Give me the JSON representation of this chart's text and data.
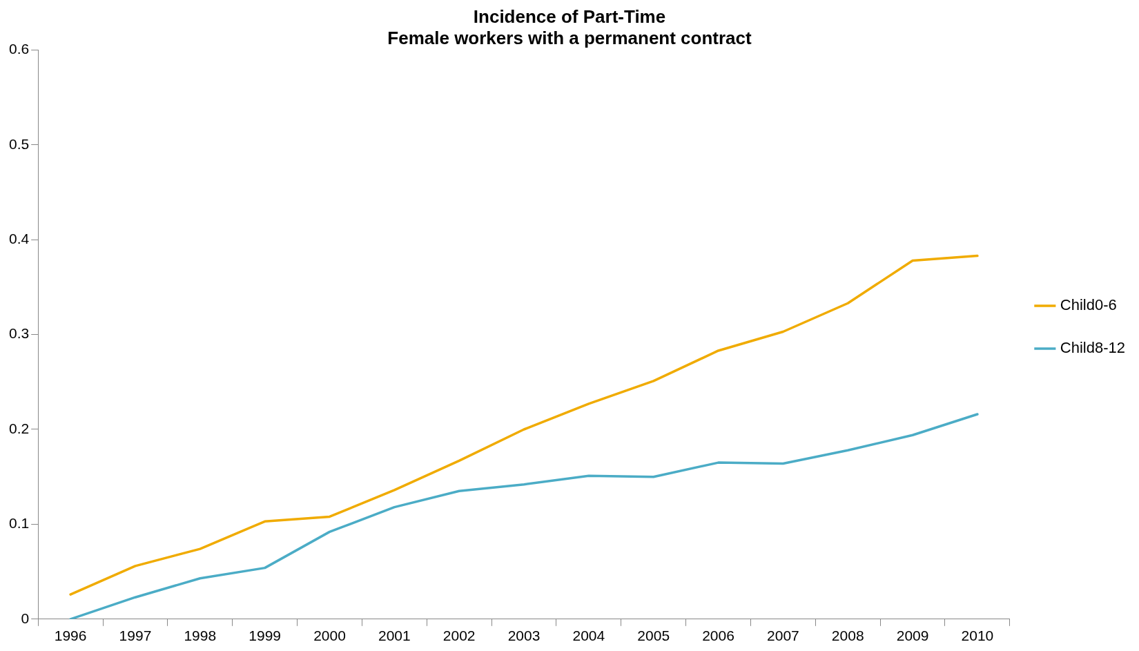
{
  "chart_data": {
    "type": "line",
    "title": "Incidence of Part-Time\nFemale workers with a permanent contract",
    "categories": [
      "1996",
      "1997",
      "1998",
      "1999",
      "2000",
      "2001",
      "2002",
      "2003",
      "2004",
      "2005",
      "2006",
      "2007",
      "2008",
      "2009",
      "2010"
    ],
    "series": [
      {
        "name": "Child0-6",
        "color": "#f0ab00",
        "values": [
          0.026,
          0.056,
          0.074,
          0.103,
          0.108,
          0.136,
          0.167,
          0.2,
          0.227,
          0.251,
          0.283,
          0.303,
          0.333,
          0.378,
          0.383
        ]
      },
      {
        "name": "Child8-12",
        "color": "#4bacc6",
        "values": [
          0,
          0.023,
          0.043,
          0.054,
          0.092,
          0.118,
          0.135,
          0.142,
          0.151,
          0.15,
          0.165,
          0.164,
          0.178,
          0.194,
          0.216
        ]
      }
    ],
    "ylim": [
      0,
      0.6
    ],
    "yticks": [
      0,
      0.1,
      0.2,
      0.3,
      0.4,
      0.5,
      0.6
    ],
    "grid": false,
    "legend": "right",
    "marker": "none",
    "line_style": "solid"
  }
}
